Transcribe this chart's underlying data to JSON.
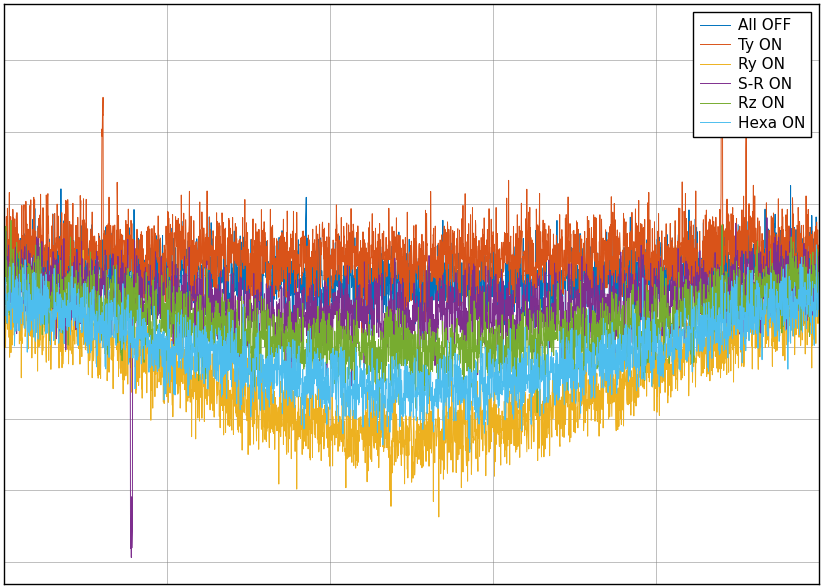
{
  "title": "",
  "xlabel": "",
  "ylabel": "",
  "legend_labels": [
    "All OFF",
    "Ty ON",
    "Ry ON",
    "S-R ON",
    "Rz ON",
    "Hexa ON"
  ],
  "colors": [
    "#0072BD",
    "#D95319",
    "#EDB120",
    "#7E2F8E",
    "#77AC30",
    "#4DBEEE"
  ],
  "linewidth": 0.7,
  "grid": true,
  "background_color": "#ffffff",
  "figsize": [
    8.23,
    5.88
  ],
  "dpi": 100,
  "n_points": 3000,
  "seed": 42
}
